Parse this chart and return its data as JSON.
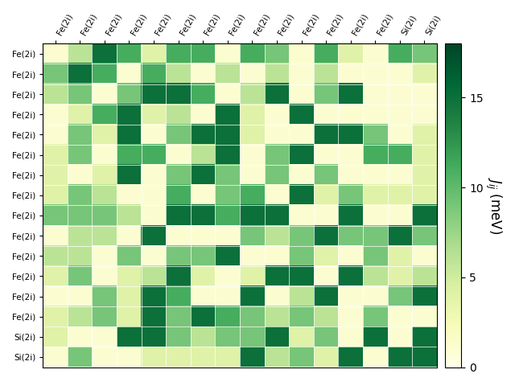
{
  "labels": [
    "Fe(2i)",
    "Fe(2i)",
    "Fe(2i)",
    "Fe(2i)",
    "Fe(2i)",
    "Fe(2i)",
    "Fe(2i)",
    "Fe(2i)",
    "Fe(2i)",
    "Fe(2i)",
    "Fe(2i)",
    "Fe(2i)",
    "Fe(2i)",
    "Fe(2i)",
    "Si(2i)",
    "Si(2i)"
  ],
  "matrix": [
    [
      1,
      6,
      15,
      11,
      4,
      11,
      11,
      1,
      11,
      9,
      1,
      11,
      4,
      1,
      11,
      9
    ],
    [
      9,
      15,
      11,
      1,
      11,
      6,
      1,
      6,
      1,
      6,
      1,
      6,
      1,
      1,
      1,
      4
    ],
    [
      6,
      9,
      1,
      9,
      15,
      15,
      11,
      1,
      6,
      15,
      1,
      9,
      15,
      1,
      1,
      1
    ],
    [
      1,
      4,
      11,
      15,
      4,
      6,
      1,
      15,
      4,
      1,
      15,
      1,
      1,
      1,
      1,
      1
    ],
    [
      1,
      9,
      4,
      15,
      1,
      9,
      15,
      15,
      4,
      1,
      1,
      15,
      15,
      9,
      1,
      4
    ],
    [
      4,
      9,
      1,
      11,
      11,
      1,
      6,
      15,
      1,
      9,
      15,
      1,
      1,
      11,
      11,
      4
    ],
    [
      4,
      1,
      4,
      15,
      1,
      9,
      15,
      9,
      1,
      9,
      1,
      9,
      1,
      1,
      1,
      4
    ],
    [
      4,
      9,
      6,
      1,
      1,
      11,
      1,
      9,
      11,
      1,
      15,
      4,
      9,
      4,
      4,
      4
    ],
    [
      9,
      9,
      9,
      6,
      1,
      15,
      15,
      11,
      15,
      15,
      1,
      1,
      15,
      1,
      1,
      15
    ],
    [
      1,
      6,
      6,
      1,
      15,
      1,
      1,
      1,
      9,
      6,
      9,
      15,
      9,
      9,
      15,
      9
    ],
    [
      6,
      6,
      1,
      9,
      1,
      9,
      9,
      15,
      1,
      1,
      9,
      4,
      1,
      9,
      4,
      1
    ],
    [
      4,
      9,
      1,
      4,
      6,
      15,
      4,
      1,
      4,
      15,
      15,
      1,
      15,
      6,
      4,
      6
    ],
    [
      1,
      1,
      9,
      4,
      15,
      11,
      1,
      1,
      15,
      1,
      6,
      15,
      1,
      1,
      9,
      15
    ],
    [
      4,
      6,
      9,
      4,
      15,
      9,
      15,
      11,
      9,
      6,
      9,
      6,
      1,
      9,
      1,
      1
    ],
    [
      4,
      1,
      1,
      15,
      15,
      9,
      6,
      9,
      9,
      15,
      4,
      9,
      1,
      15,
      1,
      15
    ],
    [
      1,
      9,
      1,
      1,
      4,
      4,
      4,
      4,
      15,
      6,
      9,
      4,
      15,
      1,
      15,
      15
    ]
  ],
  "vmin": 0,
  "vmax": 18,
  "colorbar_ticks": [
    0,
    5,
    10,
    15
  ],
  "colorbar_label": "$J_{ij}$ (meV)",
  "cmap": "YlGn",
  "figsize": [
    6.4,
    4.8
  ],
  "dpi": 100
}
